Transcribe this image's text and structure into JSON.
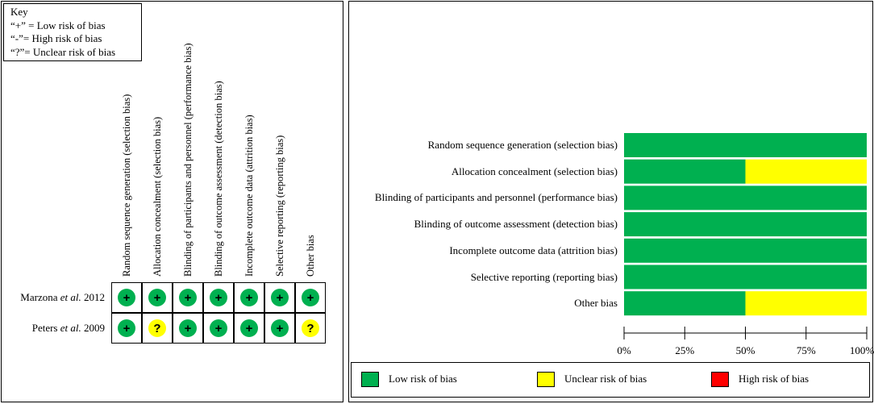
{
  "colors": {
    "low": "#00b050",
    "unclear": "#ffff00",
    "high": "#ff0000"
  },
  "key": {
    "title": "Key",
    "lines": [
      "“+” = Low risk of bias",
      "“-”= High risk of bias",
      "“?”= Unclear risk of bias"
    ]
  },
  "grid": {
    "columns": [
      "Random sequence generation (selection bias)",
      "Allocation concealment (selection bias)",
      "Blinding of participants and personnel (performance bias)",
      "Blinding of outcome assessment (detection bias)",
      "Incomplete outcome data (attrition bias)",
      "Selective reporting (reporting bias)",
      "Other bias"
    ],
    "studies": [
      {
        "name_prefix": "Marzona ",
        "name_etal": "et al.",
        "name_year": " 2012",
        "ratings": [
          "+",
          "+",
          "+",
          "+",
          "+",
          "+",
          "+"
        ]
      },
      {
        "name_prefix": "Peters ",
        "name_etal": "et al.",
        "name_year": " 2009",
        "ratings": [
          "+",
          "?",
          "+",
          "+",
          "+",
          "+",
          "?"
        ]
      }
    ]
  },
  "chart_data": {
    "type": "bar",
    "orientation": "horizontal",
    "stacked": true,
    "categories": [
      "Random sequence generation (selection bias)",
      "Allocation concealment (selection bias)",
      "Blinding of participants and personnel (performance bias)",
      "Blinding of outcome assessment (detection bias)",
      "Incomplete outcome data (attrition bias)",
      "Selective reporting (reporting bias)",
      "Other bias"
    ],
    "series": [
      {
        "name": "Low risk of bias",
        "values": [
          100,
          50,
          100,
          100,
          100,
          100,
          50
        ]
      },
      {
        "name": "Unclear risk of bias",
        "values": [
          0,
          50,
          0,
          0,
          0,
          0,
          50
        ]
      },
      {
        "name": "High risk of bias",
        "values": [
          0,
          0,
          0,
          0,
          0,
          0,
          0
        ]
      }
    ],
    "xlim": [
      0,
      100
    ],
    "x_ticks": [
      "0%",
      "25%",
      "50%",
      "75%",
      "100%"
    ],
    "grid": false,
    "legend_position": "bottom"
  }
}
